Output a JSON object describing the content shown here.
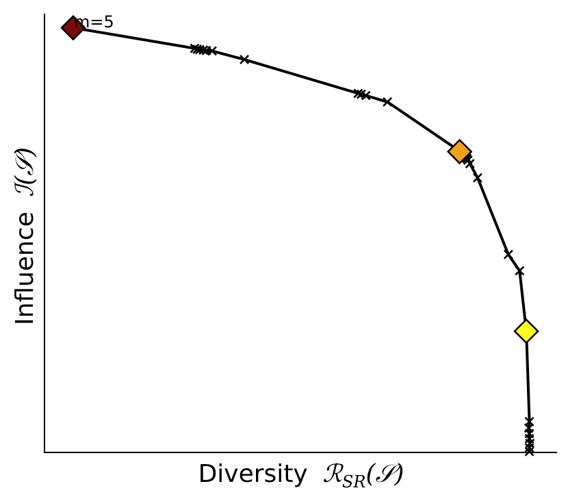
{
  "chart_data": {
    "type": "line",
    "xlabel": "Diversity",
    "xlabel_math": "ℛ",
    "xlabel_math_sub": "SR",
    "xlabel_math_arg": "(𝒮)",
    "ylabel": "Influence",
    "ylabel_math": "ℐ(𝒮)",
    "xlim": [
      0,
      1
    ],
    "ylim": [
      0,
      1
    ],
    "xticks": "none",
    "yticks": "none",
    "grid": false,
    "legend": "none",
    "annotation": {
      "text": "m=5",
      "x": 0.055,
      "y": 0.99
    },
    "series": [
      {
        "color": "#000000",
        "marker": "x",
        "x": [
          0.056,
          0.293,
          0.298,
          0.303,
          0.31,
          0.316,
          0.327,
          0.39,
          0.612,
          0.618,
          0.627,
          0.669,
          0.814,
          0.818,
          0.822,
          0.824,
          0.826,
          0.83,
          0.845,
          0.905,
          0.927,
          0.94,
          0.946,
          0.945,
          0.946,
          0.946,
          0.947,
          0.946,
          0.946
        ],
        "y": [
          0.991,
          0.943,
          0.941,
          0.94,
          0.939,
          0.938,
          0.937,
          0.917,
          0.838,
          0.836,
          0.833,
          0.818,
          0.7,
          0.697,
          0.69,
          0.686,
          0.682,
          0.674,
          0.641,
          0.462,
          0.424,
          0.283,
          0.072,
          0.057,
          0.044,
          0.032,
          0.021,
          0.011,
          0.002
        ]
      }
    ],
    "highlights": [
      {
        "x": 0.056,
        "y": 0.991,
        "color": "#7b0a0a"
      },
      {
        "x": 0.81,
        "y": 0.702,
        "color": "#f5a01a"
      },
      {
        "x": 0.94,
        "y": 0.283,
        "color": "#ffff22"
      }
    ]
  }
}
